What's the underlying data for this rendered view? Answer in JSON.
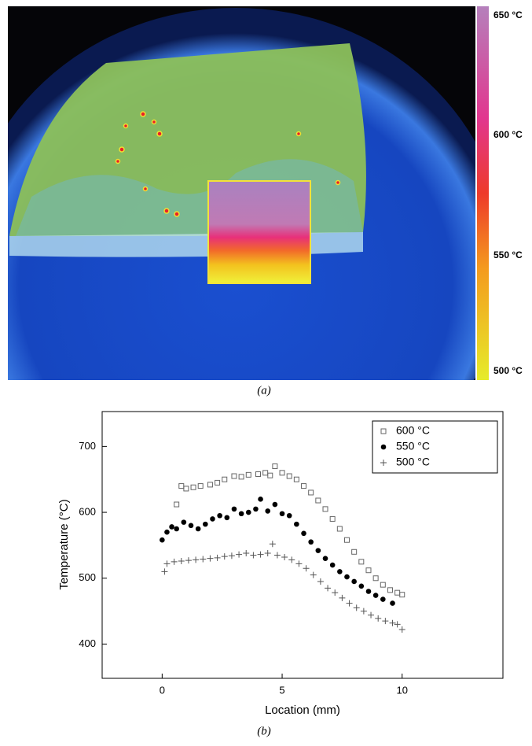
{
  "figure_a": {
    "colorbar_labels": [
      "650 °C",
      "600 °C",
      "550 °C",
      "500 °C"
    ],
    "caption": "(a)"
  },
  "chart_data": {
    "type": "scatter",
    "xlabel": "Location (mm)",
    "ylabel": "Temperature (°C)",
    "caption": "(b)",
    "xlim": [
      -2.5,
      14.2
    ],
    "ylim": [
      348,
      753
    ],
    "xticks": [
      0,
      5,
      10
    ],
    "yticks": [
      400,
      500,
      600,
      700
    ],
    "legend": "upper right",
    "series": [
      {
        "name": "600 °C",
        "color": "#666666",
        "marker": "square-open",
        "x": [
          0.6,
          0.8,
          1.0,
          1.3,
          1.6,
          2.0,
          2.3,
          2.6,
          3.0,
          3.3,
          3.6,
          4.0,
          4.3,
          4.5,
          4.7,
          5.0,
          5.3,
          5.6,
          5.9,
          6.2,
          6.5,
          6.8,
          7.1,
          7.4,
          7.7,
          8.0,
          8.3,
          8.6,
          8.9,
          9.2,
          9.5,
          9.8,
          10.0
        ],
        "values": [
          612,
          640,
          636,
          638,
          640,
          642,
          645,
          650,
          655,
          654,
          657,
          658,
          660,
          656,
          670,
          660,
          655,
          650,
          640,
          630,
          618,
          605,
          590,
          575,
          558,
          540,
          525,
          512,
          500,
          490,
          482,
          478,
          475
        ]
      },
      {
        "name": "550 °C",
        "color": "#000000",
        "marker": "circle",
        "x": [
          0.0,
          0.2,
          0.4,
          0.6,
          0.9,
          1.2,
          1.5,
          1.8,
          2.1,
          2.4,
          2.7,
          3.0,
          3.3,
          3.6,
          3.9,
          4.1,
          4.4,
          4.7,
          5.0,
          5.3,
          5.6,
          5.9,
          6.2,
          6.5,
          6.8,
          7.1,
          7.4,
          7.7,
          8.0,
          8.3,
          8.6,
          8.9,
          9.2,
          9.6
        ],
        "values": [
          558,
          570,
          578,
          575,
          585,
          580,
          575,
          582,
          590,
          595,
          592,
          605,
          598,
          600,
          605,
          620,
          602,
          612,
          598,
          595,
          582,
          568,
          555,
          542,
          530,
          520,
          510,
          502,
          495,
          488,
          480,
          474,
          468,
          462
        ]
      },
      {
        "name": "500 °C",
        "color": "#555555",
        "marker": "plus",
        "x": [
          0.1,
          0.2,
          0.5,
          0.8,
          1.1,
          1.4,
          1.7,
          2.0,
          2.3,
          2.6,
          2.9,
          3.2,
          3.5,
          3.8,
          4.1,
          4.4,
          4.6,
          4.8,
          5.1,
          5.4,
          5.7,
          6.0,
          6.3,
          6.6,
          6.9,
          7.2,
          7.5,
          7.8,
          8.1,
          8.4,
          8.7,
          9.0,
          9.3,
          9.6,
          9.8,
          10.0
        ],
        "values": [
          510,
          522,
          525,
          526,
          527,
          528,
          529,
          530,
          531,
          533,
          534,
          536,
          538,
          535,
          536,
          538,
          552,
          535,
          532,
          528,
          522,
          515,
          505,
          495,
          485,
          478,
          470,
          462,
          455,
          450,
          444,
          439,
          435,
          432,
          430,
          422
        ]
      }
    ]
  }
}
